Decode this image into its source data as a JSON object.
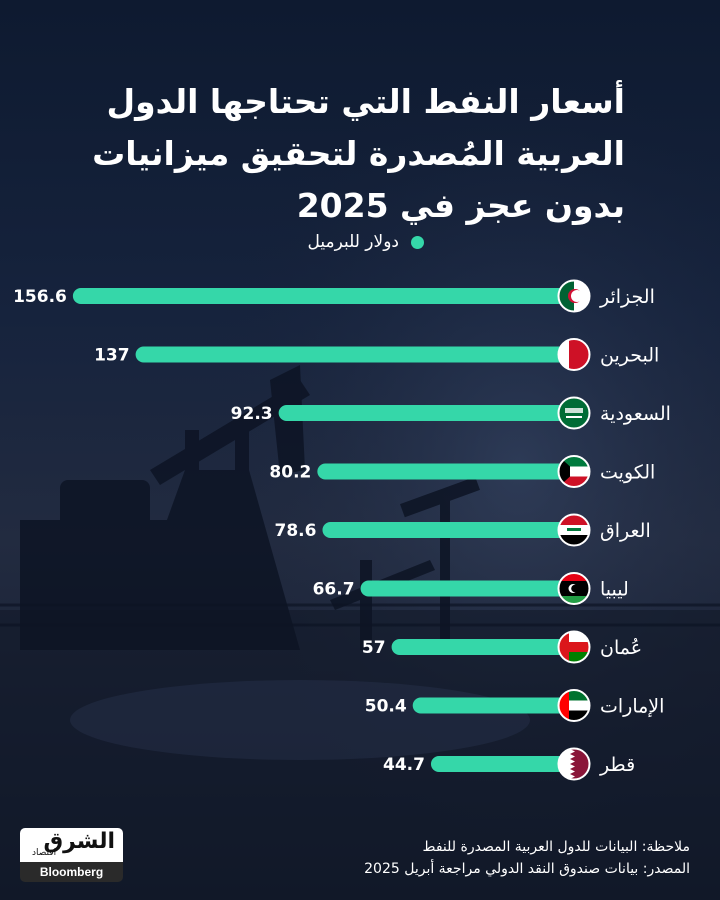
{
  "title_lines": [
    "أسعار النفط التي تحتاجها الدول",
    "العربية المُصدرة لتحقيق ميزانيات",
    "بدون عجز في 2025"
  ],
  "legend_label": "دولار للبرميل",
  "colors": {
    "bar": "#35d7a9",
    "text": "#ffffff",
    "background": "#16233d"
  },
  "chart_data": {
    "type": "bar",
    "orientation": "horizontal",
    "categories": [
      "الجزائر",
      "البحرين",
      "السعودية",
      "الكويت",
      "العراق",
      "ليبيا",
      "عُمان",
      "الإمارات",
      "قطر"
    ],
    "values": [
      156.6,
      137,
      92.3,
      80.2,
      78.6,
      66.7,
      57,
      50.4,
      44.7
    ],
    "value_labels": [
      "156.6",
      "137",
      "92.3",
      "80.2",
      "78.6",
      "66.7",
      "57",
      "50.4",
      "44.7"
    ],
    "flags": [
      "algeria-flag-icon",
      "bahrain-flag-icon",
      "saudi-flag-icon",
      "kuwait-flag-icon",
      "iraq-flag-icon",
      "libya-flag-icon",
      "oman-flag-icon",
      "uae-flag-icon",
      "qatar-flag-icon"
    ],
    "unit": "دولار للبرميل"
  },
  "footer": {
    "note": "ملاحظة: البيانات للدول العربية المصدرة للنفط",
    "source": "المصدر: بيانات صندوق النقد الدولي مراجعة أبريل 2025"
  },
  "logo": {
    "arabic": "الشرق",
    "sub": "اقتصاد",
    "brand": "Bloomberg"
  }
}
